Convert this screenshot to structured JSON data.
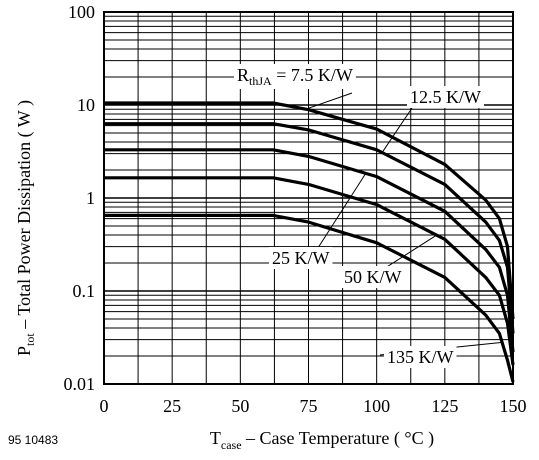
{
  "figure_id": "95 10483",
  "chart_data": {
    "type": "line",
    "title": "",
    "xlabel": {
      "main": "T",
      "sub": "case",
      "rest": " – Case Temperature ( °C )"
    },
    "ylabel": {
      "main": "P",
      "sub": "tot",
      "rest": " – Total Power Dissipation ( W )"
    },
    "xlim": [
      0,
      150
    ],
    "ylim": [
      0.01,
      100
    ],
    "yscale": "log",
    "grid": true,
    "x_ticks": [
      {
        "value": 0,
        "label": "0"
      },
      {
        "value": 25,
        "label": "25"
      },
      {
        "value": 50,
        "label": "50"
      },
      {
        "value": 75,
        "label": "75"
      },
      {
        "value": 100,
        "label": "100"
      },
      {
        "value": 125,
        "label": "125"
      },
      {
        "value": 150,
        "label": "150"
      }
    ],
    "y_ticks": [
      {
        "value": 0.01,
        "label": "0.01"
      },
      {
        "value": 0.1,
        "label": "0.1"
      },
      {
        "value": 1,
        "label": "1"
      },
      {
        "value": 10,
        "label": "10"
      },
      {
        "value": 100,
        "label": "100"
      }
    ],
    "series": [
      {
        "id": "r7_5",
        "name": "R|thJA| = 7.5 K/W",
        "color": "#000000",
        "plateau_w": 10.5,
        "points": [
          [
            0,
            10.5
          ],
          [
            62,
            10.5
          ],
          [
            75,
            8.9
          ],
          [
            100,
            5.5
          ],
          [
            125,
            2.3
          ],
          [
            140,
            0.95
          ],
          [
            145,
            0.6
          ],
          [
            148,
            0.3
          ],
          [
            150,
            0.05
          ]
        ]
      },
      {
        "id": "r12_5",
        "name": "12.5 K/W",
        "color": "#000000",
        "plateau_w": 6.3,
        "points": [
          [
            0,
            6.3
          ],
          [
            62,
            6.3
          ],
          [
            75,
            5.4
          ],
          [
            100,
            3.3
          ],
          [
            125,
            1.4
          ],
          [
            140,
            0.55
          ],
          [
            145,
            0.35
          ],
          [
            148,
            0.18
          ],
          [
            150,
            0.035
          ]
        ]
      },
      {
        "id": "r25",
        "name": "25 K/W",
        "color": "#000000",
        "plateau_w": 3.3,
        "points": [
          [
            0,
            3.3
          ],
          [
            62,
            3.3
          ],
          [
            75,
            2.8
          ],
          [
            100,
            1.7
          ],
          [
            125,
            0.72
          ],
          [
            140,
            0.28
          ],
          [
            145,
            0.18
          ],
          [
            148,
            0.09
          ],
          [
            150,
            0.022
          ]
        ]
      },
      {
        "id": "r50",
        "name": "50 K/W",
        "color": "#000000",
        "plateau_w": 1.65,
        "points": [
          [
            0,
            1.65
          ],
          [
            62,
            1.65
          ],
          [
            75,
            1.4
          ],
          [
            100,
            0.85
          ],
          [
            125,
            0.36
          ],
          [
            140,
            0.14
          ],
          [
            145,
            0.09
          ],
          [
            148,
            0.045
          ],
          [
            150,
            0.016
          ]
        ]
      },
      {
        "id": "r135",
        "name": "135 K/W",
        "color": "#000000",
        "plateau_w": 0.65,
        "points": [
          [
            0,
            0.65
          ],
          [
            62,
            0.65
          ],
          [
            75,
            0.55
          ],
          [
            100,
            0.33
          ],
          [
            125,
            0.14
          ],
          [
            140,
            0.055
          ],
          [
            145,
            0.035
          ],
          [
            148,
            0.018
          ],
          [
            150,
            0.0105
          ]
        ]
      }
    ]
  }
}
